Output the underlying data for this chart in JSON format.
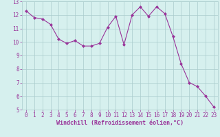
{
  "x": [
    0,
    1,
    2,
    3,
    4,
    5,
    6,
    7,
    8,
    9,
    10,
    11,
    12,
    13,
    14,
    15,
    16,
    17,
    18,
    19,
    20,
    21,
    22,
    23
  ],
  "y": [
    12.3,
    11.8,
    11.7,
    11.3,
    10.2,
    9.9,
    10.1,
    9.7,
    9.7,
    9.9,
    11.1,
    11.9,
    9.8,
    12.0,
    12.6,
    11.9,
    12.6,
    12.1,
    10.4,
    8.4,
    7.0,
    6.7,
    6.0,
    5.2
  ],
  "line_color": "#993399",
  "marker": "D",
  "marker_size": 2.0,
  "bg_color": "#d6f0ee",
  "grid_color": "#aacccc",
  "xlabel": "Windchill (Refroidissement éolien,°C)",
  "xlabel_color": "#993399",
  "xlabel_fontsize": 6.0,
  "tick_color": "#993399",
  "tick_fontsize": 5.5,
  "ylim": [
    5,
    13
  ],
  "xlim": [
    -0.5,
    23.5
  ],
  "yticks": [
    5,
    6,
    7,
    8,
    9,
    10,
    11,
    12,
    13
  ],
  "xticks": [
    0,
    1,
    2,
    3,
    4,
    5,
    6,
    7,
    8,
    9,
    10,
    11,
    12,
    13,
    14,
    15,
    16,
    17,
    18,
    19,
    20,
    21,
    22,
    23
  ]
}
